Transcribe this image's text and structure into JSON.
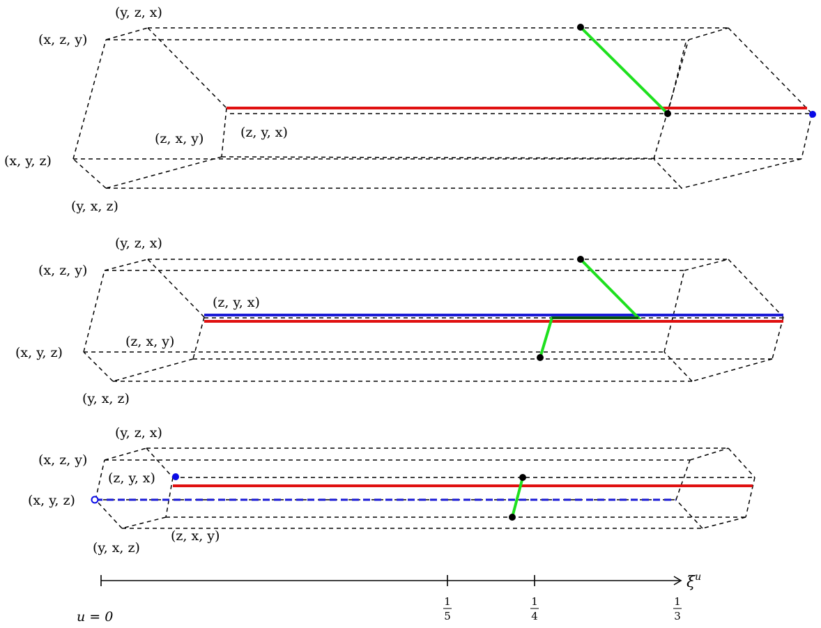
{
  "diagram": {
    "colors": {
      "edge": "#000000",
      "red_path": "#e01010",
      "blue_path": "#1a1ad6",
      "green_path": "#1ee01e",
      "point": "#000000",
      "blue_point": "#0a0ae6"
    },
    "panels": [
      {
        "vertex_labels": {
          "yzx": "(y, z, x)",
          "xzy": "(x, z, y)",
          "zxy": "(z, x, y)",
          "zyx": "(z, y, x)",
          "xyz": "(x, y, z)",
          "yxz": "(y, x, z)"
        }
      },
      {
        "vertex_labels": {
          "yzx": "(y, z, x)",
          "xzy": "(x, z, y)",
          "zyx": "(z, y, x)",
          "zxy": "(z, x, y)",
          "xyz": "(x, y, z)",
          "yxz": "(y, x, z)"
        }
      },
      {
        "vertex_labels": {
          "yzx": "(y, z, x)",
          "xzy": "(x, z, y)",
          "zyx": "(z, y, x)",
          "xyz": "(x, y, z)",
          "zxy": "(z, x, y)",
          "yxz": "(y, x, z)"
        }
      }
    ],
    "axis": {
      "label": "ξ",
      "label_superscript": "u",
      "origin_label": "u = 0",
      "ticks": [
        {
          "num": "1",
          "den": "5"
        },
        {
          "num": "1",
          "den": "4"
        },
        {
          "num": "1",
          "den": "3"
        }
      ]
    }
  }
}
